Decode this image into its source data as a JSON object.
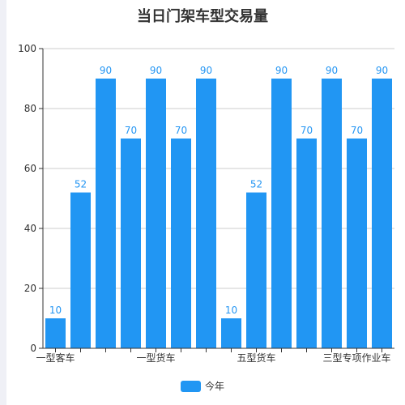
{
  "colors": {
    "bar": "#2196f3",
    "label": "#2596f3",
    "axis": "#333333",
    "grid": "#cccccc"
  },
  "chart_data": {
    "type": "bar",
    "title": "当日门架车型交易量",
    "xlabel": "",
    "ylabel": "",
    "ylim": [
      0,
      100
    ],
    "yticks": [
      0,
      20,
      40,
      60,
      80,
      100
    ],
    "grid": true,
    "legend_position": "bottom-center",
    "categories": [
      "一型客车",
      "",
      "",
      "",
      "一型货车",
      "",
      "",
      "",
      "五型货车",
      "",
      "",
      "",
      "三型专项作业车",
      ""
    ],
    "series": [
      {
        "name": "今年",
        "values": [
          10,
          52,
          90,
          70,
          90,
          70,
          90,
          10,
          52,
          90,
          70,
          90,
          70,
          90
        ],
        "show_labels": true
      }
    ]
  }
}
